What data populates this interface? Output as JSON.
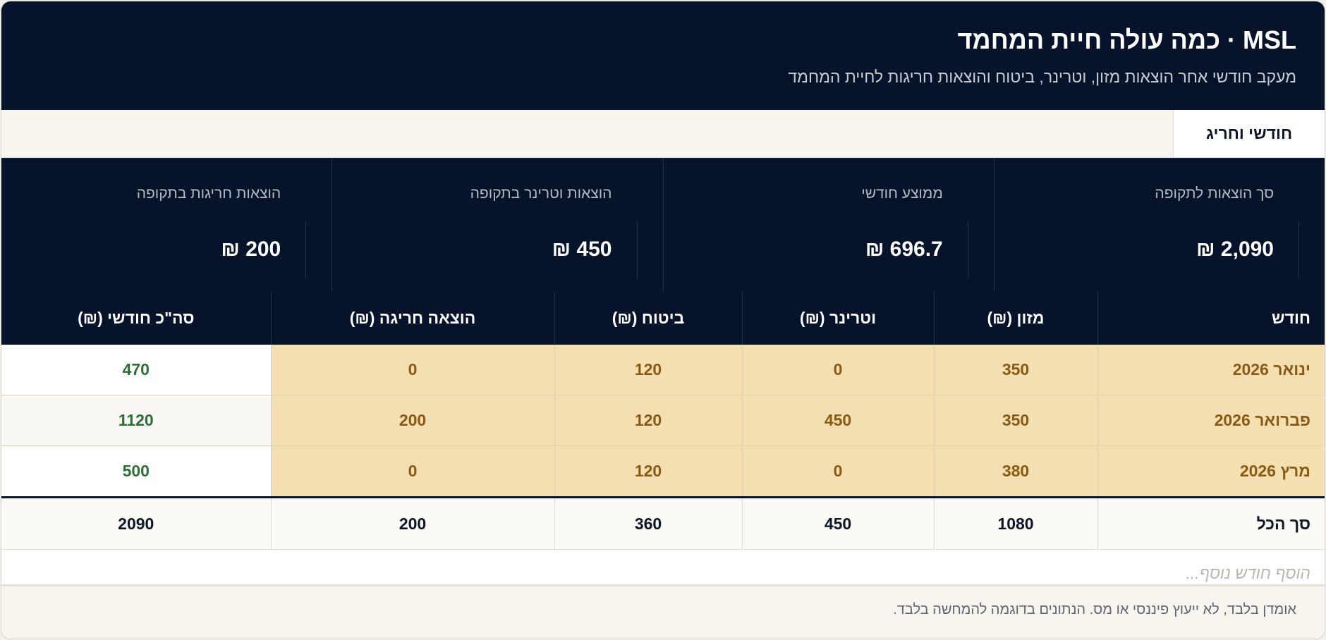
{
  "header": {
    "title": "MSL · כמה עולה חיית המחמד",
    "subtitle": "מעקב חודשי אחר הוצאות מזון, וטרינר, ביטוח והוצאות חריגות לחיית המחמד"
  },
  "tabs": [
    {
      "label": "חודשי וחריג"
    }
  ],
  "summary": [
    {
      "label": "סך הוצאות לתקופה",
      "value": "2,090 ₪"
    },
    {
      "label": "ממוצע חודשי",
      "value": "696.7 ₪"
    },
    {
      "label": "הוצאות וטרינר בתקופה",
      "value": "450 ₪"
    },
    {
      "label": "הוצאות חריגות בתקופה",
      "value": "200 ₪"
    }
  ],
  "table": {
    "columns": [
      "חודש",
      "מזון (₪)",
      "וטרינר (₪)",
      "ביטוח (₪)",
      "הוצאה חריגה (₪)",
      "סה\"כ חודשי (₪)"
    ],
    "rows": [
      [
        "ינואר 2026",
        "350",
        "0",
        "120",
        "0",
        "470"
      ],
      [
        "פברואר 2026",
        "350",
        "450",
        "120",
        "200",
        "1120"
      ],
      [
        "מרץ 2026",
        "380",
        "0",
        "120",
        "0",
        "500"
      ]
    ],
    "totals": [
      "סך הכל",
      "1080",
      "450",
      "360",
      "200",
      "2090"
    ],
    "add_row_placeholder": "הוסף חודש נוסף..."
  },
  "footer": {
    "disclaimer": "אומדן בלבד, לא ייעוץ פיננסי או מס. הנתונים בדוגמה להמחשה בלבד."
  },
  "colors": {
    "header_bg": "#06132b",
    "cell_highlight": "#f4dfb2",
    "cell_text": "#8a5a14",
    "total_text": "#2f6e37"
  }
}
